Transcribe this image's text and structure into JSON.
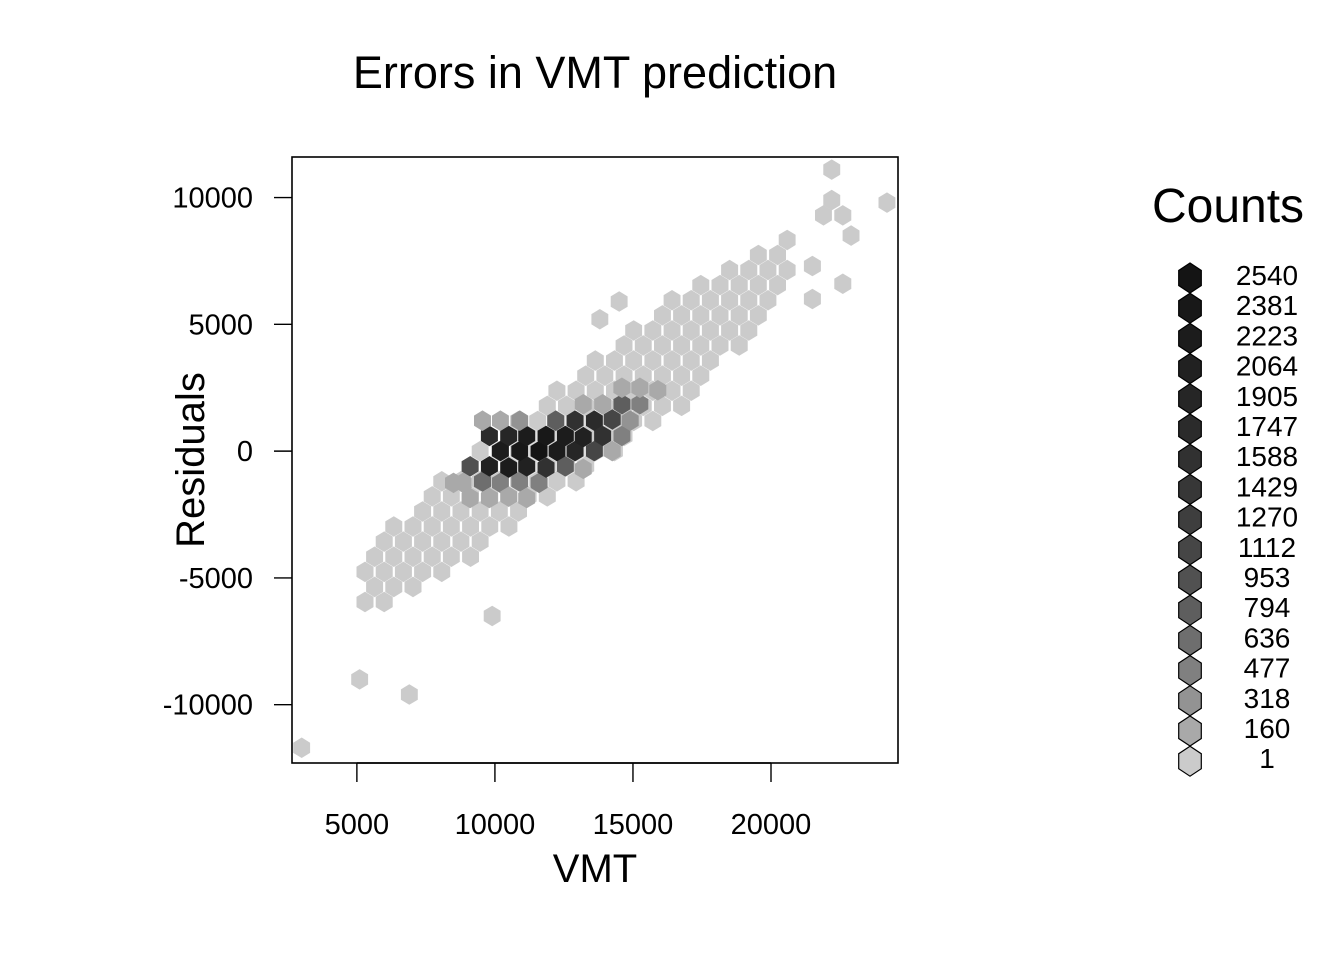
{
  "chart_data": {
    "type": "hexbin",
    "title": "Errors in VMT prediction",
    "xlabel": "VMT",
    "ylabel": "Residuals",
    "xlim": [
      2650,
      24600
    ],
    "ylim": [
      -12300,
      11600
    ],
    "xticks": [
      5000,
      10000,
      15000,
      20000
    ],
    "xtick_labels": [
      "5000",
      "10000",
      "15000",
      "20000"
    ],
    "yticks": [
      -10000,
      -5000,
      0,
      5000,
      10000
    ],
    "ytick_labels": [
      "-10000",
      "-5000",
      "0",
      "5000",
      "10000"
    ],
    "hex_grid": {
      "x_spacing_vmt": 695,
      "y_spacing_residual": 595
    },
    "legend": {
      "title": "Counts",
      "placement": "right",
      "levels": [
        {
          "label": "2540",
          "color": "#141414"
        },
        {
          "label": "2381",
          "color": "#181818"
        },
        {
          "label": "2223",
          "color": "#1c1c1c"
        },
        {
          "label": "2064",
          "color": "#212121"
        },
        {
          "label": "1905",
          "color": "#262626"
        },
        {
          "label": "1747",
          "color": "#2b2b2b"
        },
        {
          "label": "1588",
          "color": "#313131"
        },
        {
          "label": "1429",
          "color": "#373737"
        },
        {
          "label": "1270",
          "color": "#3e3e3e"
        },
        {
          "label": "1112",
          "color": "#464646"
        },
        {
          "label": "953",
          "color": "#515151"
        },
        {
          "label": "794",
          "color": "#5e5e5e"
        },
        {
          "label": "636",
          "color": "#6e6e6e"
        },
        {
          "label": "477",
          "color": "#808080"
        },
        {
          "label": "318",
          "color": "#939393"
        },
        {
          "label": "160",
          "color": "#a9a9a9"
        },
        {
          "label": "1",
          "color": "#cbcbcb"
        }
      ]
    },
    "hexagons": [
      {
        "x": 3000,
        "y": -11700,
        "c": 1
      },
      {
        "x": 5100,
        "y": -9000,
        "c": 1
      },
      {
        "x": 6900,
        "y": -9600,
        "c": 1
      },
      {
        "x": 22200,
        "y": 11100,
        "c": 1
      },
      {
        "x": 24200,
        "y": 9800,
        "c": 1
      },
      {
        "x": 21900,
        "y": 9300,
        "c": 1
      },
      {
        "x": 22600,
        "y": 9300,
        "c": 1
      },
      {
        "x": 22200,
        "y": 9900,
        "c": 1
      },
      {
        "x": 22900,
        "y": 8500,
        "c": 1
      },
      {
        "x": 21500,
        "y": 7300,
        "c": 1
      },
      {
        "x": 22600,
        "y": 6600,
        "c": 1
      },
      {
        "x": 21500,
        "y": 6000,
        "c": 1
      },
      {
        "x": 9900,
        "y": -6500,
        "c": 1
      },
      {
        "x": 14500,
        "y": 5900,
        "c": 1
      },
      {
        "x": 13800,
        "y": 5200,
        "c": 1
      },
      {
        "x": 9550,
        "y": -1200,
        "c": 700
      },
      {
        "x": 10200,
        "y": -1250,
        "c": 500
      },
      {
        "x": 10900,
        "y": -1200,
        "c": 500
      },
      {
        "x": 11600,
        "y": -1250,
        "c": 500
      },
      {
        "x": 8850,
        "y": -1250,
        "c": 300
      },
      {
        "x": 8500,
        "y": -1250,
        "c": 200
      },
      {
        "x": 9100,
        "y": -600,
        "c": 1000
      },
      {
        "x": 9800,
        "y": -600,
        "c": 2100
      },
      {
        "x": 10500,
        "y": -650,
        "c": 2300
      },
      {
        "x": 11150,
        "y": -600,
        "c": 2200
      },
      {
        "x": 11850,
        "y": -650,
        "c": 1600
      },
      {
        "x": 12550,
        "y": -600,
        "c": 800
      },
      {
        "x": 13200,
        "y": -700,
        "c": 300
      },
      {
        "x": 10200,
        "y": 0,
        "c": 2300
      },
      {
        "x": 10900,
        "y": 0,
        "c": 2450
      },
      {
        "x": 11600,
        "y": 0,
        "c": 2540
      },
      {
        "x": 12250,
        "y": 0,
        "c": 2300
      },
      {
        "x": 12900,
        "y": 0,
        "c": 2000
      },
      {
        "x": 13600,
        "y": 0,
        "c": 1200
      },
      {
        "x": 14250,
        "y": 0,
        "c": 300
      },
      {
        "x": 9800,
        "y": 600,
        "c": 1800
      },
      {
        "x": 10500,
        "y": 600,
        "c": 2000
      },
      {
        "x": 11150,
        "y": 600,
        "c": 2300
      },
      {
        "x": 11850,
        "y": 600,
        "c": 2450
      },
      {
        "x": 12550,
        "y": 600,
        "c": 2300
      },
      {
        "x": 13200,
        "y": 550,
        "c": 2100
      },
      {
        "x": 13900,
        "y": 600,
        "c": 1600
      },
      {
        "x": 14600,
        "y": 600,
        "c": 600
      },
      {
        "x": 9100,
        "y": -1850,
        "c": 300
      },
      {
        "x": 9800,
        "y": -1850,
        "c": 250
      },
      {
        "x": 10500,
        "y": -1800,
        "c": 200
      },
      {
        "x": 11150,
        "y": -1850,
        "c": 180
      },
      {
        "x": 9550,
        "y": 1200,
        "c": 300
      },
      {
        "x": 10200,
        "y": 1200,
        "c": 200
      },
      {
        "x": 10900,
        "y": 1200,
        "c": 400
      },
      {
        "x": 12200,
        "y": 1200,
        "c": 900
      },
      {
        "x": 12900,
        "y": 1200,
        "c": 1700
      },
      {
        "x": 13600,
        "y": 1200,
        "c": 1900
      },
      {
        "x": 14250,
        "y": 1250,
        "c": 1200
      },
      {
        "x": 14900,
        "y": 1200,
        "c": 350
      },
      {
        "x": 14600,
        "y": 1850,
        "c": 900
      },
      {
        "x": 15250,
        "y": 1850,
        "c": 600
      },
      {
        "x": 15900,
        "y": 2400,
        "c": 300
      },
      {
        "x": 15250,
        "y": 2500,
        "c": 250
      },
      {
        "x": 14600,
        "y": 2500,
        "c": 200
      },
      {
        "x": 13900,
        "y": 1850,
        "c": 200
      },
      {
        "x": 13200,
        "y": 1850,
        "c": 200
      }
    ]
  }
}
